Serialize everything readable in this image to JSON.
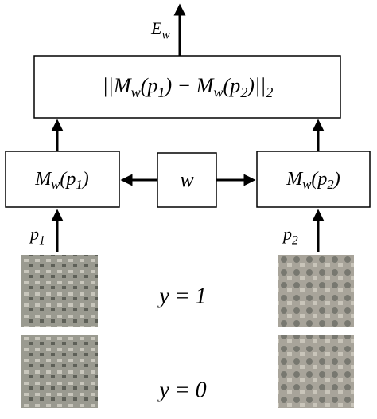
{
  "energy_label": [
    {
      "t": "E"
    },
    {
      "sub": "w"
    }
  ],
  "distance_box": [
    {
      "t": "||M"
    },
    {
      "sub": "w"
    },
    {
      "t": "(p"
    },
    {
      "sub": "1"
    },
    {
      "t": ") − M"
    },
    {
      "sub": "w"
    },
    {
      "t": "(p"
    },
    {
      "sub": "2"
    },
    {
      "t": ")||"
    },
    {
      "sub": "2"
    }
  ],
  "left_box": [
    {
      "t": "M"
    },
    {
      "sub": "w"
    },
    {
      "t": "(p"
    },
    {
      "sub": "1"
    },
    {
      "t": ")"
    }
  ],
  "weight_box": [
    {
      "t": "w"
    }
  ],
  "right_box": [
    {
      "t": "M"
    },
    {
      "sub": "w"
    },
    {
      "t": "(p"
    },
    {
      "sub": "2"
    },
    {
      "t": ")"
    }
  ],
  "left_input": [
    {
      "t": "p"
    },
    {
      "sub": "1"
    }
  ],
  "right_input": [
    {
      "t": "p"
    },
    {
      "sub": "2"
    }
  ],
  "pair_labels": [
    "y = 1",
    "y = 0"
  ]
}
